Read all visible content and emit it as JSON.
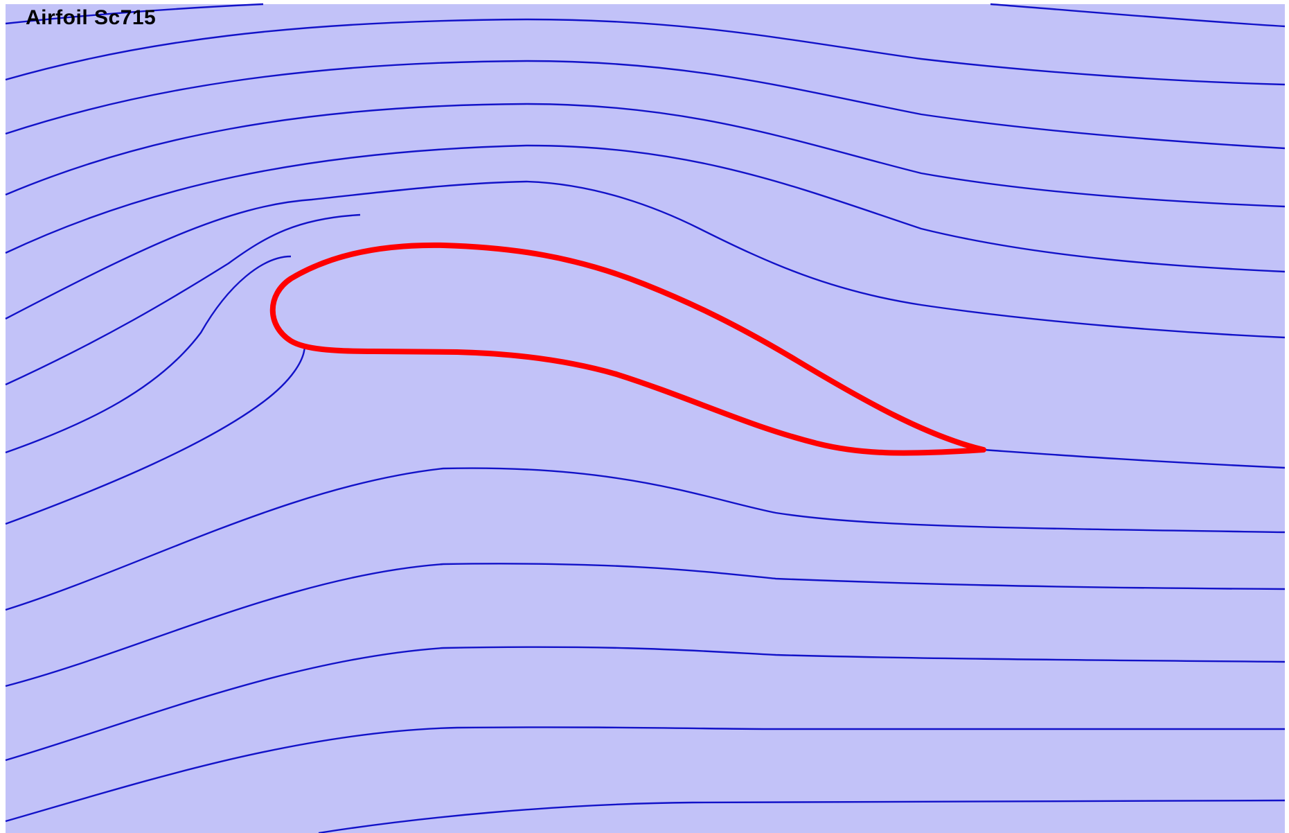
{
  "title": "Airfoil Sc715",
  "colors": {
    "background": "#c2c2f8",
    "streamline": "#1212c8",
    "airfoil": "#ff0000",
    "title": "#000000"
  }
}
